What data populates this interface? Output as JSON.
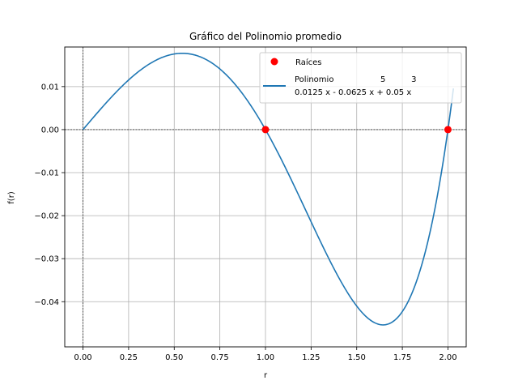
{
  "chart_data": {
    "type": "line",
    "title": "Gráfico del Polinomio promedio",
    "xlabel": "r",
    "ylabel": "f(r)",
    "xlim": [
      -0.1,
      2.1
    ],
    "ylim": [
      -0.0505,
      0.0192
    ],
    "grid": true,
    "legend_position": "top-right",
    "x_ticks": [
      0.0,
      0.25,
      0.5,
      0.75,
      1.0,
      1.25,
      1.5,
      1.75,
      2.0
    ],
    "x_tick_labels": [
      "0.00",
      "0.25",
      "0.50",
      "0.75",
      "1.00",
      "1.25",
      "1.50",
      "1.75",
      "2.00"
    ],
    "y_ticks": [
      0.01,
      0.0,
      -0.01,
      -0.02,
      -0.03,
      -0.04
    ],
    "y_tick_labels": [
      "0.01",
      "0.00",
      "−0.01",
      "−0.02",
      "−0.03",
      "−0.04"
    ],
    "series": [
      {
        "type": "line",
        "color": "#1f77b4",
        "coefficients": {
          "x5": 0.0125,
          "x3": -0.0625,
          "x1": 0.05
        },
        "x_range": [
          0.0,
          2.03
        ]
      },
      {
        "name": "Raíces",
        "type": "scatter",
        "color": "#ff0000",
        "x": [
          1.0,
          2.0
        ],
        "y": [
          0.0,
          0.0
        ]
      }
    ],
    "legend": {
      "scatter_label": "Raíces",
      "line_label_prefix": "Polinomio",
      "exponents_line": "5          3",
      "formula_line": "0.0125 x - 0.0625 x + 0.05 x"
    },
    "reference_lines": {
      "y0": 0,
      "x0": 0
    }
  }
}
